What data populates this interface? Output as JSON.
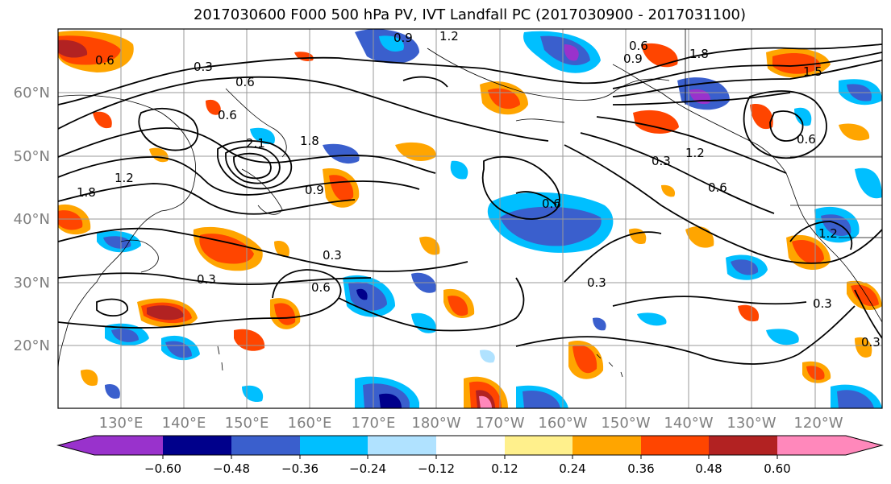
{
  "title": "2017030600 F000 500 hPa PV, IVT Landfall PC (2017030900 - 2017031100)",
  "map": {
    "lat_labels": [
      "60°N",
      "50°N",
      "40°N",
      "30°N",
      "20°N"
    ],
    "lon_labels": [
      "130°E",
      "140°E",
      "150°E",
      "160°E",
      "170°E",
      "180°W",
      "170°W",
      "160°W",
      "150°W",
      "140°W",
      "130°W",
      "120°W"
    ],
    "contour_labels": [
      "0.6",
      "0.3",
      "0.6",
      "0.9",
      "1.2",
      "0.6",
      "0.9",
      "1.8",
      "1.5",
      "1.8",
      "2.1",
      "0.6",
      "0.9",
      "0.6",
      "1.2",
      "1.8",
      "0.3",
      "1.2",
      "0.6",
      "0.3",
      "0.6",
      "0.3",
      "0.3",
      "0.6",
      "0.3",
      "1.2",
      "0.3"
    ]
  },
  "colorbar": {
    "ticks": [
      "−0.60",
      "−0.48",
      "−0.36",
      "−0.24",
      "−0.12",
      "0.12",
      "0.24",
      "0.36",
      "0.48",
      "0.60"
    ],
    "colors": [
      "#9932cc",
      "#00008b",
      "#3a5fcd",
      "#00bfff",
      "#b0e2ff",
      "#ffffff",
      "#fff08c",
      "#ffa500",
      "#ff4500",
      "#b22222",
      "#ff88bb"
    ]
  }
}
